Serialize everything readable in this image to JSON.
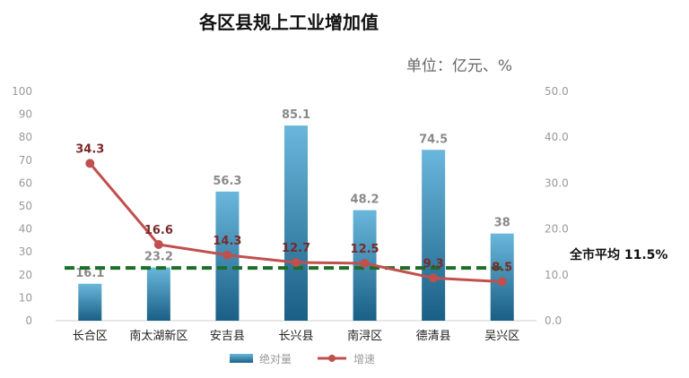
{
  "chart_data": {
    "type": "bar+line",
    "title": "各区县规上工业增加值",
    "unit_label": "单位：亿元、%",
    "categories": [
      "长合区",
      "南太湖新区",
      "安吉县",
      "长兴县",
      "南浔区",
      "德清县",
      "吴兴区"
    ],
    "series": [
      {
        "name": "绝对量",
        "type": "bar",
        "axis": "left",
        "values": [
          16.1,
          23.2,
          56.3,
          85.1,
          48.2,
          74.5,
          38
        ],
        "labels": [
          "16.1",
          "23.2",
          "56.3",
          "85.1",
          "48.2",
          "74.5",
          "38"
        ],
        "color": "#2f8fc0"
      },
      {
        "name": "增速",
        "type": "line",
        "axis": "right",
        "values": [
          34.3,
          16.6,
          14.3,
          12.7,
          12.5,
          9.3,
          8.5
        ],
        "labels": [
          "34.3",
          "16.6",
          "14.3",
          "12.7",
          "12.5",
          "9.3",
          "8.5"
        ],
        "color": "#c0504d"
      }
    ],
    "reference_line": {
      "label": "全市平均 11.5%",
      "value": 11.5,
      "axis": "right",
      "color": "#1e6e2a"
    },
    "y_left": {
      "min": 0,
      "max": 100,
      "ticks": [
        "0",
        "10",
        "20",
        "30",
        "40",
        "50",
        "60",
        "70",
        "80",
        "90",
        "100"
      ]
    },
    "y_right": {
      "min": 0,
      "max": 50,
      "ticks": [
        "0.0",
        "10.0",
        "20.0",
        "30.0",
        "40.0",
        "50.0"
      ]
    },
    "legend": {
      "position": "bottom",
      "items": [
        "绝对量",
        "增速"
      ]
    },
    "grid": false
  }
}
